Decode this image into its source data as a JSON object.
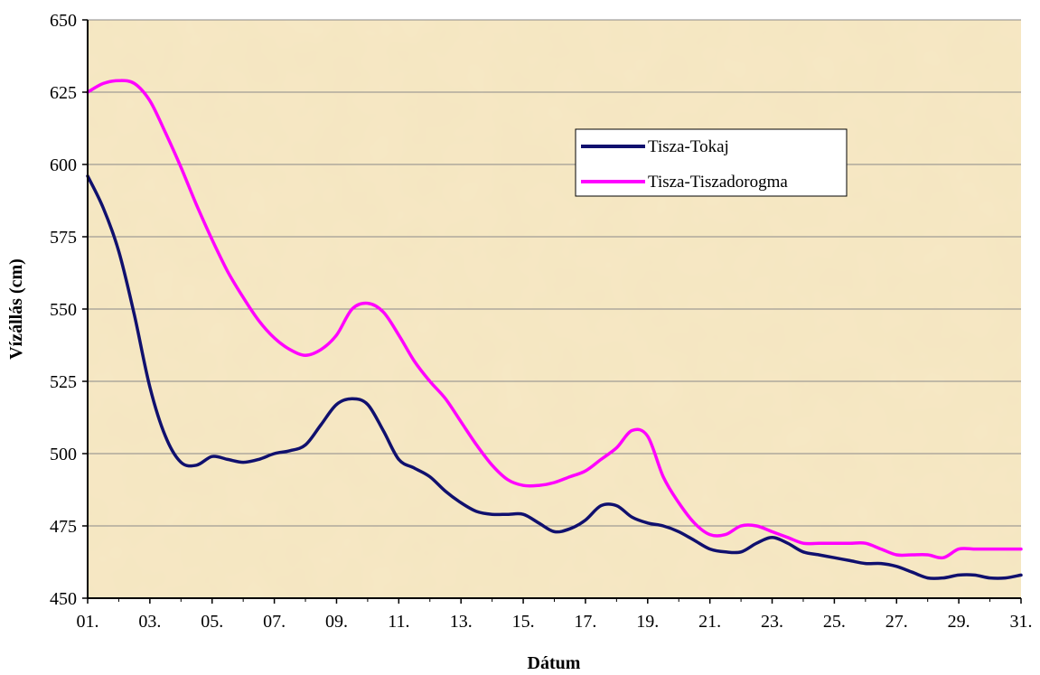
{
  "chart_data": {
    "type": "line",
    "title": "",
    "xlabel": "Dátum",
    "ylabel": "Vízállás (cm)",
    "ylim": [
      450,
      650
    ],
    "yticks": [
      450,
      475,
      500,
      525,
      550,
      575,
      600,
      625,
      650
    ],
    "xlim": [
      1,
      31
    ],
    "xticks": [
      1,
      3,
      5,
      7,
      9,
      11,
      13,
      15,
      17,
      19,
      21,
      23,
      25,
      27,
      29,
      31
    ],
    "xtick_labels": [
      "01.",
      "03.",
      "05.",
      "07.",
      "09.",
      "11.",
      "13.",
      "15.",
      "17.",
      "19.",
      "21.",
      "23.",
      "25.",
      "27.",
      "29.",
      "31."
    ],
    "grid": "horizontal",
    "legend_position": "upper-right",
    "background": "#f6e8c4",
    "series": [
      {
        "name": "Tisza-Tokaj",
        "color": "#10106e",
        "x": [
          1,
          1.5,
          2,
          2.5,
          3,
          3.5,
          4,
          4.5,
          5,
          5.5,
          6,
          6.5,
          7,
          7.5,
          8,
          8.5,
          9,
          9.5,
          10,
          10.5,
          11,
          11.5,
          12,
          12.5,
          13,
          13.5,
          14,
          14.5,
          15,
          15.5,
          16,
          16.5,
          17,
          17.5,
          18,
          18.5,
          19,
          19.5,
          20,
          20.5,
          21,
          21.5,
          22,
          22.5,
          23,
          23.5,
          24,
          24.5,
          25,
          25.5,
          26,
          26.5,
          27,
          27.5,
          28,
          28.5,
          29,
          29.5,
          30,
          30.5,
          31
        ],
        "values": [
          596,
          585,
          570,
          548,
          523,
          506,
          497,
          496,
          499,
          498,
          497,
          498,
          500,
          501,
          503,
          510,
          517,
          519,
          517,
          508,
          498,
          495,
          492,
          487,
          483,
          480,
          479,
          479,
          479,
          476,
          473,
          474,
          477,
          482,
          482,
          478,
          476,
          475,
          473,
          470,
          467,
          466,
          466,
          469,
          471,
          469,
          466,
          465,
          464,
          463,
          462,
          462,
          461,
          459,
          457,
          457,
          458,
          458,
          457,
          457,
          458
        ]
      },
      {
        "name": "Tisza-Tiszadorogma",
        "color": "#ff00ff",
        "x": [
          1,
          1.5,
          2,
          2.5,
          3,
          3.5,
          4,
          4.5,
          5,
          5.5,
          6,
          6.5,
          7,
          7.5,
          8,
          8.5,
          9,
          9.5,
          10,
          10.5,
          11,
          11.5,
          12,
          12.5,
          13,
          13.5,
          14,
          14.5,
          15,
          15.5,
          16,
          16.5,
          17,
          17.5,
          18,
          18.5,
          19,
          19.5,
          20,
          20.5,
          21,
          21.5,
          22,
          22.5,
          23,
          23.5,
          24,
          24.5,
          25,
          25.5,
          26,
          26.5,
          27,
          27.5,
          28,
          28.5,
          29,
          29.5,
          30,
          30.5,
          31
        ],
        "values": [
          625,
          628,
          629,
          628,
          622,
          611,
          599,
          586,
          574,
          563,
          554,
          546,
          540,
          536,
          534,
          536,
          541,
          550,
          552,
          549,
          541,
          532,
          525,
          519,
          511,
          503,
          496,
          491,
          489,
          489,
          490,
          492,
          494,
          498,
          502,
          508,
          506,
          492,
          483,
          476,
          472,
          472,
          475,
          475,
          473,
          471,
          469,
          469,
          469,
          469,
          469,
          467,
          465,
          465,
          465,
          464,
          467,
          467,
          467,
          467,
          467
        ]
      }
    ]
  }
}
